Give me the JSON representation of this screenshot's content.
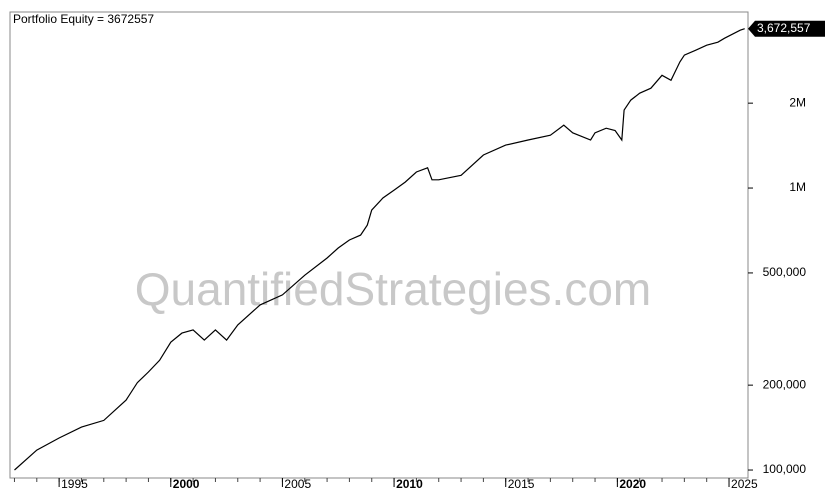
{
  "chart_data": {
    "type": "line",
    "title": "Portfolio Equity = 3672557",
    "watermark": "QuantifiedStrategies.com",
    "color": "#000000",
    "x": [
      1993.0,
      1994.0,
      1995.0,
      1996.0,
      1997.0,
      1998.0,
      1998.5,
      1999.0,
      1999.5,
      2000.0,
      2000.5,
      2001.0,
      2001.5,
      2002.0,
      2002.5,
      2003.0,
      2004.0,
      2005.0,
      2006.0,
      2007.0,
      2007.5,
      2008.0,
      2008.5,
      2008.8,
      2009.0,
      2009.5,
      2010.0,
      2010.5,
      2011.0,
      2011.5,
      2011.7,
      2012.0,
      2013.0,
      2014.0,
      2015.0,
      2016.0,
      2017.0,
      2017.6,
      2018.0,
      2018.8,
      2019.0,
      2019.5,
      2019.9,
      2020.2,
      2020.3,
      2020.6,
      2021.0,
      2021.5,
      2022.0,
      2022.4,
      2022.8,
      2023.0,
      2023.5,
      2024.0,
      2024.5,
      2024.8,
      2025.5,
      2025.7
    ],
    "values": [
      100000,
      117700,
      129900,
      142000,
      150000,
      177000,
      204000,
      222600,
      245000,
      284000,
      306000,
      314000,
      289000,
      314000,
      289000,
      327000,
      385000,
      418000,
      491000,
      565000,
      613000,
      654000,
      681000,
      739000,
      835000,
      922000,
      983000,
      1050000,
      1140000,
      1180000,
      1070000,
      1070000,
      1110000,
      1310000,
      1420000,
      1480000,
      1540000,
      1670000,
      1570000,
      1480000,
      1570000,
      1630000,
      1600000,
      1480000,
      1890000,
      2050000,
      2170000,
      2260000,
      2510000,
      2410000,
      2800000,
      2960000,
      3080000,
      3210000,
      3290000,
      3400000,
      3630000,
      3672557
    ],
    "last_value": {
      "value": 3672557,
      "label": "3,672,557"
    },
    "xlim": [
      1992.8,
      2025.85
    ],
    "xticks": [
      1995,
      2000,
      2005,
      2010,
      2015,
      2020,
      2025
    ],
    "bold_xticks": [
      2000,
      2010,
      2020
    ],
    "minor_xtick_step": 1,
    "log_y": true,
    "ylim": [
      93700,
      4210000
    ],
    "yticks": [
      {
        "value": 100000,
        "label": "100,000"
      },
      {
        "value": 200000,
        "label": "200,000"
      },
      {
        "value": 500000,
        "label": "500,000"
      },
      {
        "value": 1000000,
        "label": "1M"
      },
      {
        "value": 2000000,
        "label": "2M"
      }
    ]
  }
}
